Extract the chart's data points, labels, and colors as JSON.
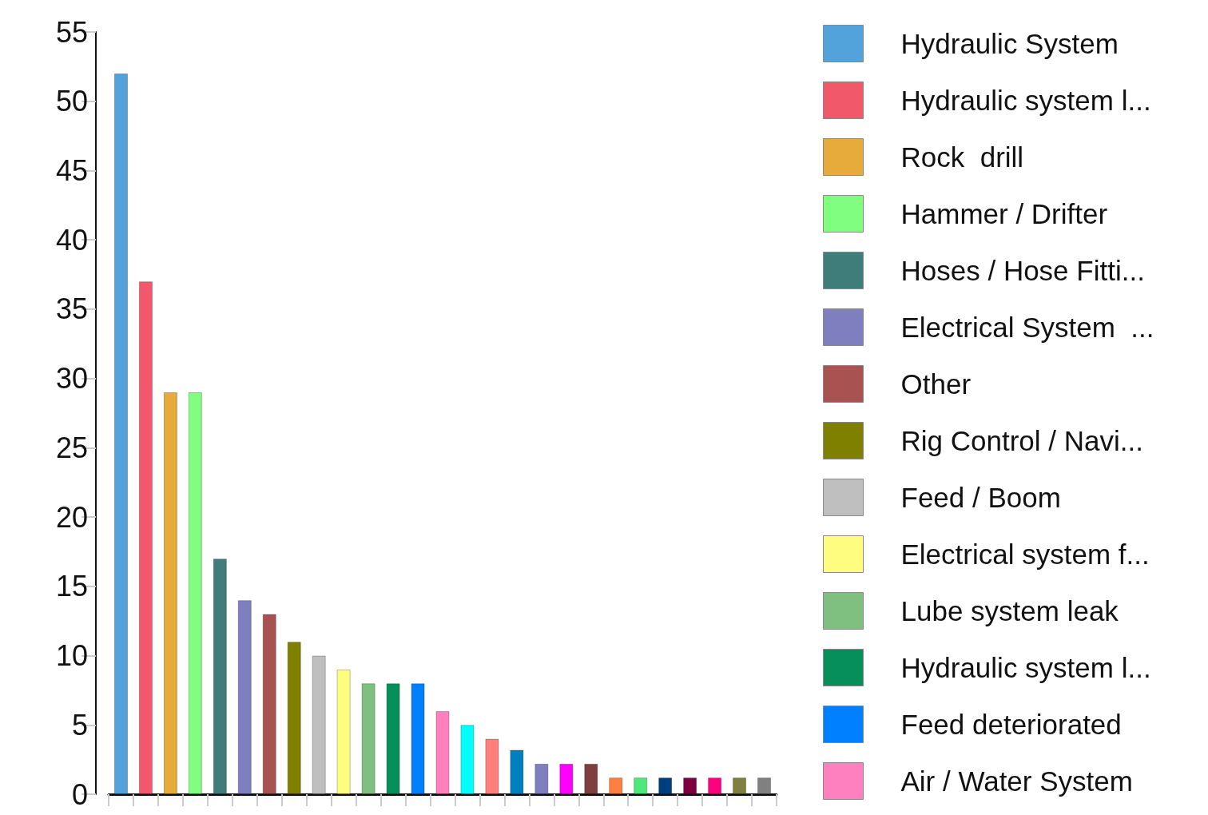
{
  "chart_data": {
    "type": "bar",
    "stacked": true,
    "categories": [
      null,
      null,
      null,
      null,
      null,
      null,
      null,
      null,
      null,
      null,
      null,
      null,
      null,
      null,
      null,
      null,
      null,
      null,
      null,
      null,
      null,
      null,
      null,
      null,
      null,
      null,
      null
    ],
    "series": [
      {
        "name": "Hydraulic System",
        "color": "#52a3db",
        "values": [
          52,
          null,
          null,
          null,
          null,
          null,
          null,
          null,
          null,
          null,
          null,
          null,
          null,
          null,
          null,
          null,
          null,
          null,
          null,
          null,
          null,
          null,
          null,
          null,
          null,
          null,
          null
        ]
      },
      {
        "name": "Hydraulic system l...",
        "color": "#f1596b",
        "values": [
          null,
          37,
          null,
          null,
          null,
          null,
          null,
          null,
          null,
          null,
          null,
          null,
          null,
          null,
          null,
          null,
          null,
          null,
          null,
          null,
          null,
          null,
          null,
          null,
          null,
          null,
          null
        ]
      },
      {
        "name": "Rock  drill",
        "color": "#e6ab3a",
        "values": [
          null,
          null,
          29,
          null,
          null,
          null,
          null,
          null,
          null,
          null,
          null,
          null,
          null,
          null,
          null,
          null,
          null,
          null,
          null,
          null,
          null,
          null,
          null,
          null,
          null,
          null,
          null
        ]
      },
      {
        "name": "Hammer / Drifter",
        "color": "#80fe80",
        "values": [
          null,
          null,
          null,
          29,
          null,
          null,
          null,
          null,
          null,
          null,
          null,
          null,
          null,
          null,
          null,
          null,
          null,
          null,
          null,
          null,
          null,
          null,
          null,
          null,
          null,
          null,
          null
        ]
      },
      {
        "name": "Hoses / Hose Fitti...",
        "color": "#3f7d7b",
        "values": [
          null,
          null,
          null,
          null,
          17,
          null,
          null,
          null,
          null,
          null,
          null,
          null,
          null,
          null,
          null,
          null,
          null,
          null,
          null,
          null,
          null,
          null,
          null,
          null,
          null,
          null,
          null
        ]
      },
      {
        "name": "Electrical System  ...",
        "color": "#7f7fbf",
        "values": [
          null,
          null,
          null,
          null,
          null,
          14,
          null,
          null,
          null,
          null,
          null,
          null,
          null,
          null,
          null,
          null,
          null,
          null,
          null,
          null,
          null,
          null,
          null,
          null,
          null,
          null,
          null
        ]
      },
      {
        "name": "Other",
        "color": "#a85252",
        "values": [
          null,
          null,
          null,
          null,
          null,
          null,
          13,
          null,
          null,
          null,
          null,
          null,
          null,
          null,
          null,
          null,
          null,
          null,
          null,
          null,
          null,
          null,
          null,
          null,
          null,
          null,
          null
        ]
      },
      {
        "name": "Rig Control / Navi...",
        "color": "#7f7f00",
        "values": [
          null,
          null,
          null,
          null,
          null,
          null,
          null,
          11,
          null,
          null,
          null,
          null,
          null,
          null,
          null,
          null,
          null,
          null,
          null,
          null,
          null,
          null,
          null,
          null,
          null,
          null,
          null
        ]
      },
      {
        "name": "Feed / Boom",
        "color": "#bfbfbf",
        "values": [
          null,
          null,
          null,
          null,
          null,
          null,
          null,
          null,
          10,
          null,
          null,
          null,
          null,
          null,
          null,
          null,
          null,
          null,
          null,
          null,
          null,
          null,
          null,
          null,
          null,
          null,
          null
        ]
      },
      {
        "name": "Electrical system f...",
        "color": "#fffd7f",
        "values": [
          null,
          null,
          null,
          null,
          null,
          null,
          null,
          null,
          null,
          9,
          null,
          null,
          null,
          null,
          null,
          null,
          null,
          null,
          null,
          null,
          null,
          null,
          null,
          null,
          null,
          null,
          null
        ]
      },
      {
        "name": "Lube system leak",
        "color": "#7fbf7f",
        "values": [
          null,
          null,
          null,
          null,
          null,
          null,
          null,
          null,
          null,
          null,
          8,
          null,
          null,
          null,
          null,
          null,
          null,
          null,
          null,
          null,
          null,
          null,
          null,
          null,
          null,
          null,
          null
        ]
      },
      {
        "name": "Hydraulic system l...",
        "color": "#068f5b",
        "values": [
          null,
          null,
          null,
          null,
          null,
          null,
          null,
          null,
          null,
          null,
          null,
          8,
          null,
          null,
          null,
          null,
          null,
          null,
          null,
          null,
          null,
          null,
          null,
          null,
          null,
          null,
          null
        ]
      },
      {
        "name": "Feed deteriorated",
        "color": "#0080ff",
        "values": [
          null,
          null,
          null,
          null,
          null,
          null,
          null,
          null,
          null,
          null,
          null,
          null,
          8,
          null,
          null,
          null,
          null,
          null,
          null,
          null,
          null,
          null,
          null,
          null,
          null,
          null,
          null
        ]
      },
      {
        "name": "Air / Water System",
        "color": "#ff80bf",
        "values": [
          null,
          null,
          null,
          null,
          null,
          null,
          null,
          null,
          null,
          null,
          null,
          null,
          null,
          6,
          null,
          null,
          null,
          null,
          null,
          null,
          null,
          null,
          null,
          null,
          null,
          null,
          null
        ]
      },
      {
        "color": "#00ffff",
        "values": [
          null,
          null,
          null,
          null,
          null,
          null,
          null,
          null,
          null,
          null,
          null,
          null,
          null,
          null,
          5,
          null,
          null,
          null,
          null,
          null,
          null,
          null,
          null,
          null,
          null,
          null,
          null
        ]
      },
      {
        "color": "#ff7f7f",
        "values": [
          null,
          null,
          null,
          null,
          null,
          null,
          null,
          null,
          null,
          null,
          null,
          null,
          null,
          null,
          null,
          4,
          null,
          null,
          null,
          null,
          null,
          null,
          null,
          null,
          null,
          null,
          null
        ]
      },
      {
        "color": "#0080bf",
        "values": [
          null,
          null,
          null,
          null,
          null,
          null,
          null,
          null,
          null,
          null,
          null,
          null,
          null,
          null,
          null,
          null,
          3.2,
          null,
          null,
          null,
          null,
          null,
          null,
          null,
          null,
          null,
          null
        ]
      },
      {
        "color": "#7f7fbf",
        "values": [
          null,
          null,
          null,
          null,
          null,
          null,
          null,
          null,
          null,
          null,
          null,
          null,
          null,
          null,
          null,
          null,
          null,
          2.2,
          null,
          null,
          null,
          null,
          null,
          null,
          null,
          null,
          null
        ]
      },
      {
        "color": "#ff00ff",
        "values": [
          null,
          null,
          null,
          null,
          null,
          null,
          null,
          null,
          null,
          null,
          null,
          null,
          null,
          null,
          null,
          null,
          null,
          null,
          2.2,
          null,
          null,
          null,
          null,
          null,
          null,
          null,
          null
        ]
      },
      {
        "color": "#7f3f3f",
        "values": [
          null,
          null,
          null,
          null,
          null,
          null,
          null,
          null,
          null,
          null,
          null,
          null,
          null,
          null,
          null,
          null,
          null,
          null,
          null,
          2.2,
          null,
          null,
          null,
          null,
          null,
          null,
          null
        ]
      },
      {
        "color": "#ff7f3f",
        "values": [
          null,
          null,
          null,
          null,
          null,
          null,
          null,
          null,
          null,
          null,
          null,
          null,
          null,
          null,
          null,
          null,
          null,
          null,
          null,
          null,
          1.2,
          null,
          null,
          null,
          null,
          null,
          null
        ]
      },
      {
        "color": "#4fe87a",
        "values": [
          null,
          null,
          null,
          null,
          null,
          null,
          null,
          null,
          null,
          null,
          null,
          null,
          null,
          null,
          null,
          null,
          null,
          null,
          null,
          null,
          null,
          1.2,
          null,
          null,
          null,
          null,
          null
        ]
      },
      {
        "color": "#003f7f",
        "values": [
          null,
          null,
          null,
          null,
          null,
          null,
          null,
          null,
          null,
          null,
          null,
          null,
          null,
          null,
          null,
          null,
          null,
          null,
          null,
          null,
          null,
          null,
          1.2,
          null,
          null,
          null,
          null
        ]
      },
      {
        "color": "#7f003f",
        "values": [
          null,
          null,
          null,
          null,
          null,
          null,
          null,
          null,
          null,
          null,
          null,
          null,
          null,
          null,
          null,
          null,
          null,
          null,
          null,
          null,
          null,
          null,
          null,
          1.2,
          null,
          null,
          null
        ]
      },
      {
        "color": "#ff007f",
        "values": [
          null,
          null,
          null,
          null,
          null,
          null,
          null,
          null,
          null,
          null,
          null,
          null,
          null,
          null,
          null,
          null,
          null,
          null,
          null,
          null,
          null,
          null,
          null,
          null,
          1.2,
          null,
          null
        ]
      },
      {
        "color": "#7f7f3f",
        "values": [
          null,
          null,
          null,
          null,
          null,
          null,
          null,
          null,
          null,
          null,
          null,
          null,
          null,
          null,
          null,
          null,
          null,
          null,
          null,
          null,
          null,
          null,
          null,
          null,
          null,
          1.2,
          null
        ]
      },
      {
        "color": "#808080",
        "values": [
          null,
          null,
          null,
          null,
          null,
          null,
          null,
          null,
          null,
          null,
          null,
          null,
          null,
          null,
          null,
          null,
          null,
          null,
          null,
          null,
          null,
          null,
          null,
          null,
          null,
          null,
          1.2
        ]
      }
    ],
    "ylim": [
      0,
      55
    ],
    "yticks": [
      0,
      5,
      10,
      15,
      20,
      25,
      30,
      35,
      40,
      45,
      50,
      55
    ],
    "grid": false,
    "legend": "right"
  }
}
